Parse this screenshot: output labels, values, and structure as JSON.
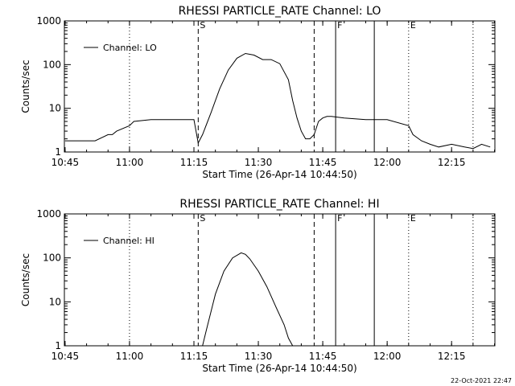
{
  "footer_timestamp": "22-Oct-2021 22:47",
  "marker_labels": [
    "S",
    "F",
    "E"
  ],
  "chart_data": [
    {
      "type": "line",
      "title": "RHESSI PARTICLE_RATE Channel: LO",
      "xlabel": "Start Time (26-Apr-14 10:44:50)",
      "ylabel": "Counts/sec",
      "yscale": "log",
      "xlim": [
        "10:45",
        "12:25"
      ],
      "ylim": [
        1,
        1000
      ],
      "x_ticks": [
        "10:45",
        "11:00",
        "11:15",
        "11:30",
        "11:45",
        "12:00",
        "12:15"
      ],
      "y_ticks": [
        "1",
        "10",
        "100",
        "1000"
      ],
      "legend": "top-left",
      "grid": false,
      "vertical_markers": [
        {
          "time": "11:00",
          "style": "dotted"
        },
        {
          "time": "11:16",
          "style": "dashed",
          "label": "S"
        },
        {
          "time": "11:43",
          "style": "dashed"
        },
        {
          "time": "11:48",
          "style": "solid",
          "label": "F"
        },
        {
          "time": "11:57",
          "style": "solid"
        },
        {
          "time": "12:05",
          "style": "dotted",
          "label": "E"
        },
        {
          "time": "12:20",
          "style": "dotted"
        }
      ],
      "series": [
        {
          "name": "Channel: LO",
          "x": [
            "10:45",
            "10:50",
            "10:52",
            "10:55",
            "10:56",
            "10:57",
            "11:00",
            "11:01",
            "11:05",
            "11:10",
            "11:15",
            "11:16",
            "11:17",
            "11:19",
            "11:21",
            "11:23",
            "11:25",
            "11:27",
            "11:29",
            "11:31",
            "11:33",
            "11:35",
            "11:37",
            "11:38",
            "11:39",
            "11:40",
            "11:41",
            "11:42",
            "11:43",
            "11:44",
            "11:45",
            "11:46",
            "11:47",
            "11:50",
            "11:55",
            "12:00",
            "12:05",
            "12:06",
            "12:08",
            "12:10",
            "12:12",
            "12:15",
            "12:18",
            "12:20",
            "12:22",
            "12:24"
          ],
          "y": [
            1.8,
            1.8,
            1.8,
            2.5,
            2.5,
            3.0,
            4.0,
            5.0,
            5.5,
            5.5,
            5.5,
            1.6,
            2.5,
            8,
            28,
            75,
            140,
            180,
            165,
            130,
            130,
            105,
            45,
            15,
            6,
            3,
            2,
            2,
            2.5,
            5,
            6,
            6.5,
            6.5,
            6,
            5.5,
            5.5,
            4,
            2.5,
            1.8,
            1.5,
            1.3,
            1.5,
            1.3,
            1.2,
            1.5,
            1.3
          ]
        }
      ]
    },
    {
      "type": "line",
      "title": "RHESSI PARTICLE_RATE Channel: HI",
      "xlabel": "Start Time (26-Apr-14 10:44:50)",
      "ylabel": "Counts/sec",
      "yscale": "log",
      "xlim": [
        "10:45",
        "12:25"
      ],
      "ylim": [
        1,
        1000
      ],
      "x_ticks": [
        "10:45",
        "11:00",
        "11:15",
        "11:30",
        "11:45",
        "12:00",
        "12:15"
      ],
      "y_ticks": [
        "1",
        "10",
        "100",
        "1000"
      ],
      "legend": "top-left",
      "grid": false,
      "vertical_markers": [
        {
          "time": "11:00",
          "style": "dotted"
        },
        {
          "time": "11:16",
          "style": "dashed",
          "label": "S"
        },
        {
          "time": "11:43",
          "style": "dashed"
        },
        {
          "time": "11:48",
          "style": "solid",
          "label": "F"
        },
        {
          "time": "11:57",
          "style": "solid"
        },
        {
          "time": "12:05",
          "style": "dotted",
          "label": "E"
        },
        {
          "time": "12:20",
          "style": "dotted"
        }
      ],
      "series": [
        {
          "name": "Channel: HI",
          "x": [
            "11:17",
            "11:18",
            "11:20",
            "11:22",
            "11:24",
            "11:26",
            "11:27",
            "11:28",
            "11:30",
            "11:32",
            "11:34",
            "11:36",
            "11:37",
            "11:38"
          ],
          "y": [
            1.0,
            2.5,
            15,
            50,
            100,
            130,
            120,
            95,
            50,
            22,
            8,
            3,
            1.5,
            1.0
          ]
        }
      ]
    }
  ]
}
